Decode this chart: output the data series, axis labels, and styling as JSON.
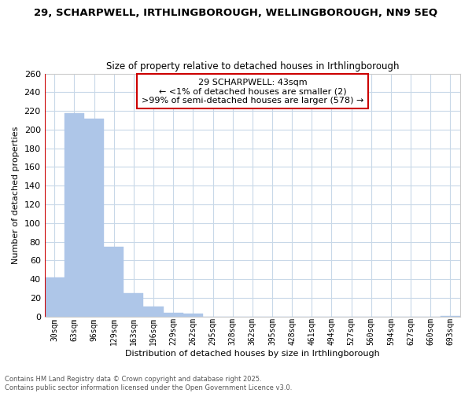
{
  "title": "29, SCHARPWELL, IRTHLINGBOROUGH, WELLINGBOROUGH, NN9 5EQ",
  "subtitle": "Size of property relative to detached houses in Irthlingborough",
  "xlabel": "Distribution of detached houses by size in Irthlingborough",
  "ylabel": "Number of detached properties",
  "bar_color": "#aec6e8",
  "categories": [
    "30sqm",
    "63sqm",
    "96sqm",
    "129sqm",
    "163sqm",
    "196sqm",
    "229sqm",
    "262sqm",
    "295sqm",
    "328sqm",
    "362sqm",
    "395sqm",
    "428sqm",
    "461sqm",
    "494sqm",
    "527sqm",
    "560sqm",
    "594sqm",
    "627sqm",
    "660sqm",
    "693sqm"
  ],
  "values": [
    42,
    218,
    212,
    75,
    25,
    11,
    4,
    3,
    0,
    0,
    0,
    0,
    0,
    0,
    0,
    0,
    0,
    0,
    0,
    0,
    1
  ],
  "ylim": [
    0,
    260
  ],
  "yticks": [
    0,
    20,
    40,
    60,
    80,
    100,
    120,
    140,
    160,
    180,
    200,
    220,
    240,
    260
  ],
  "highlight_color": "#cc0000",
  "annotation_title": "29 SCHARPWELL: 43sqm",
  "annotation_line1": "← <1% of detached houses are smaller (2)",
  "annotation_line2": ">99% of semi-detached houses are larger (578) →",
  "annotation_box_color": "#ffffff",
  "annotation_box_edge_color": "#cc0000",
  "footer_line1": "Contains HM Land Registry data © Crown copyright and database right 2025.",
  "footer_line2": "Contains public sector information licensed under the Open Government Licence v3.0.",
  "grid_color": "#c8d8e8",
  "background_color": "#ffffff",
  "title_fontsize": 9.5,
  "subtitle_fontsize": 8.5
}
